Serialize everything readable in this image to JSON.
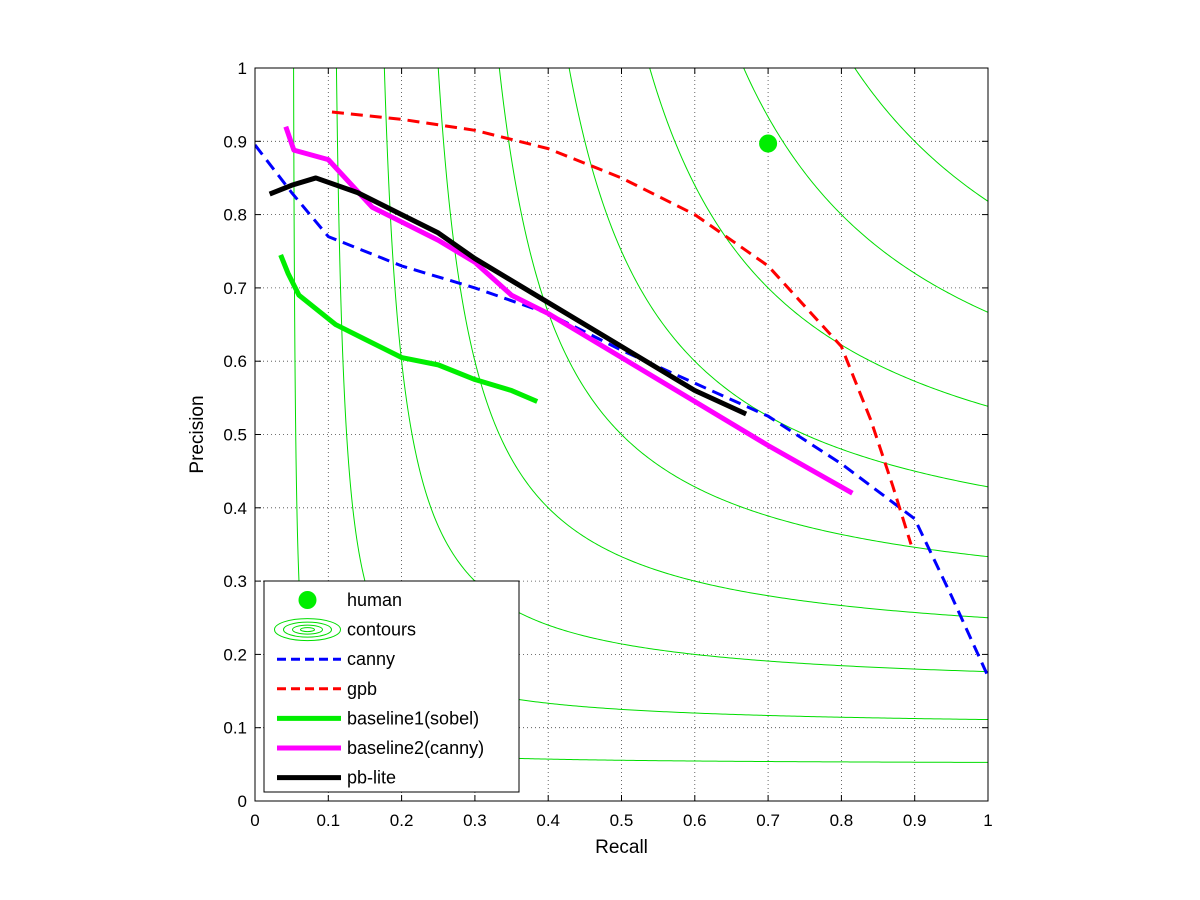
{
  "chart_data": {
    "type": "line",
    "title": "",
    "xlabel": "Recall",
    "ylabel": "Precision",
    "xlim": [
      0,
      1
    ],
    "ylim": [
      0,
      1
    ],
    "grid": true,
    "legend_position": "bottom-left",
    "x_ticks": [
      "0",
      "0.1",
      "0.2",
      "0.3",
      "0.4",
      "0.5",
      "0.6",
      "0.7",
      "0.8",
      "0.9",
      "1"
    ],
    "y_ticks": [
      "0",
      "0.1",
      "0.2",
      "0.3",
      "0.4",
      "0.5",
      "0.6",
      "0.7",
      "0.8",
      "0.9",
      "1"
    ],
    "contour_levels": [
      0.1,
      0.2,
      0.3,
      0.4,
      0.5,
      0.6,
      0.7,
      0.8,
      0.9
    ],
    "contour_color": "#00dd00",
    "legend": [
      {
        "label": "human",
        "marker": "dot",
        "color": "#00ee00"
      },
      {
        "label": "contours",
        "marker": "ellipses",
        "color": "#00dd00"
      },
      {
        "label": "canny",
        "marker": "dashed",
        "color": "#0000ff"
      },
      {
        "label": "gpb",
        "marker": "dashed",
        "color": "#ff0000"
      },
      {
        "label": "baseline1(sobel)",
        "marker": "solid",
        "color": "#00ee00"
      },
      {
        "label": "baseline2(canny)",
        "marker": "solid",
        "color": "#ff00ff"
      },
      {
        "label": "pb-lite",
        "marker": "solid",
        "color": "#000000"
      }
    ],
    "human_point": {
      "x": 0.7,
      "y": 0.897,
      "color": "#00ee00"
    },
    "series": [
      {
        "name": "canny",
        "color": "#0000ff",
        "style": "dashed",
        "width": 3,
        "points": [
          [
            0.0,
            0.895
          ],
          [
            0.05,
            0.83
          ],
          [
            0.1,
            0.77
          ],
          [
            0.2,
            0.73
          ],
          [
            0.3,
            0.7
          ],
          [
            0.4,
            0.665
          ],
          [
            0.5,
            0.615
          ],
          [
            0.6,
            0.57
          ],
          [
            0.7,
            0.525
          ],
          [
            0.8,
            0.46
          ],
          [
            0.86,
            0.415
          ],
          [
            0.9,
            0.385
          ],
          [
            0.95,
            0.28
          ],
          [
            1.0,
            0.17
          ]
        ]
      },
      {
        "name": "gpb",
        "color": "#ff0000",
        "style": "dashed",
        "width": 3,
        "points": [
          [
            0.105,
            0.94
          ],
          [
            0.2,
            0.93
          ],
          [
            0.3,
            0.915
          ],
          [
            0.4,
            0.89
          ],
          [
            0.5,
            0.85
          ],
          [
            0.6,
            0.8
          ],
          [
            0.7,
            0.73
          ],
          [
            0.8,
            0.62
          ],
          [
            0.84,
            0.52
          ],
          [
            0.87,
            0.43
          ],
          [
            0.895,
            0.35
          ]
        ]
      },
      {
        "name": "baseline1(sobel)",
        "color": "#00ee00",
        "style": "solid",
        "width": 5,
        "points": [
          [
            0.035,
            0.745
          ],
          [
            0.045,
            0.72
          ],
          [
            0.06,
            0.69
          ],
          [
            0.11,
            0.65
          ],
          [
            0.15,
            0.63
          ],
          [
            0.2,
            0.605
          ],
          [
            0.25,
            0.595
          ],
          [
            0.3,
            0.575
          ],
          [
            0.35,
            0.56
          ],
          [
            0.385,
            0.545
          ]
        ]
      },
      {
        "name": "baseline2(canny)",
        "color": "#ff00ff",
        "style": "solid",
        "width": 5,
        "points": [
          [
            0.042,
            0.92
          ],
          [
            0.053,
            0.888
          ],
          [
            0.1,
            0.875
          ],
          [
            0.16,
            0.81
          ],
          [
            0.2,
            0.79
          ],
          [
            0.25,
            0.765
          ],
          [
            0.3,
            0.735
          ],
          [
            0.35,
            0.69
          ],
          [
            0.4,
            0.665
          ],
          [
            0.5,
            0.605
          ],
          [
            0.6,
            0.545
          ],
          [
            0.7,
            0.485
          ],
          [
            0.815,
            0.42
          ]
        ]
      },
      {
        "name": "pb-lite",
        "color": "#000000",
        "style": "solid",
        "width": 5,
        "points": [
          [
            0.02,
            0.828
          ],
          [
            0.05,
            0.84
          ],
          [
            0.083,
            0.85
          ],
          [
            0.14,
            0.83
          ],
          [
            0.2,
            0.8
          ],
          [
            0.25,
            0.775
          ],
          [
            0.3,
            0.74
          ],
          [
            0.4,
            0.68
          ],
          [
            0.5,
            0.62
          ],
          [
            0.6,
            0.56
          ],
          [
            0.67,
            0.528
          ]
        ]
      }
    ]
  }
}
